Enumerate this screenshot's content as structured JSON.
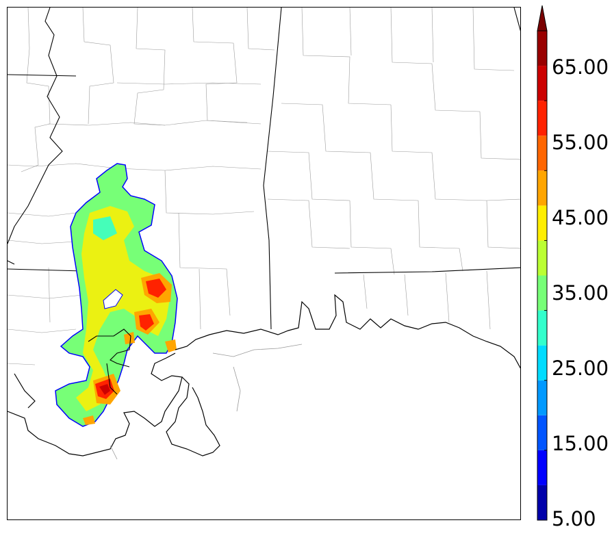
{
  "colorbar": {
    "labels": [
      "5.00",
      "15.00",
      "25.00",
      "35.00",
      "45.00",
      "55.00",
      "65.00"
    ],
    "bins": [
      {
        "lo": 5,
        "hi": 10,
        "color": "#0000aa"
      },
      {
        "lo": 10,
        "hi": 15,
        "color": "#0000ff"
      },
      {
        "lo": 15,
        "hi": 20,
        "color": "#0055ff"
      },
      {
        "lo": 20,
        "hi": 25,
        "color": "#0099ff"
      },
      {
        "lo": 25,
        "hi": 30,
        "color": "#00dcff"
      },
      {
        "lo": 30,
        "hi": 35,
        "color": "#33ffcc"
      },
      {
        "lo": 35,
        "hi": 40,
        "color": "#77ff77"
      },
      {
        "lo": 40,
        "hi": 45,
        "color": "#bbff33"
      },
      {
        "lo": 45,
        "hi": 50,
        "color": "#ffee00"
      },
      {
        "lo": 50,
        "hi": 55,
        "color": "#ffa500"
      },
      {
        "lo": 55,
        "hi": 60,
        "color": "#ff6600"
      },
      {
        "lo": 60,
        "hi": 65,
        "color": "#ff2200"
      },
      {
        "lo": 65,
        "hi": 70,
        "color": "#cc0000"
      },
      {
        "lo": 70,
        "hi": 75,
        "color": "#990000"
      }
    ],
    "extend": "max",
    "extend_color": "#7a0000"
  },
  "map": {
    "land_color": "#ffffff",
    "water_color": "#ffffff",
    "coast_color": "#000000",
    "state_line_color": "#000000",
    "county_line_color": "#999999"
  }
}
